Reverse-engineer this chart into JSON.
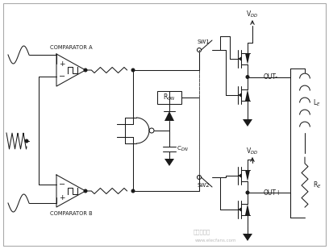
{
  "bg_color": "#ffffff",
  "line_color": "#1a1a1a",
  "fig_width": 4.08,
  "fig_height": 3.09,
  "dpi": 100,
  "border": [
    4,
    4,
    400,
    301
  ],
  "watermark1": "电子发烧网",
  "watermark2": "www.elecfans.com"
}
